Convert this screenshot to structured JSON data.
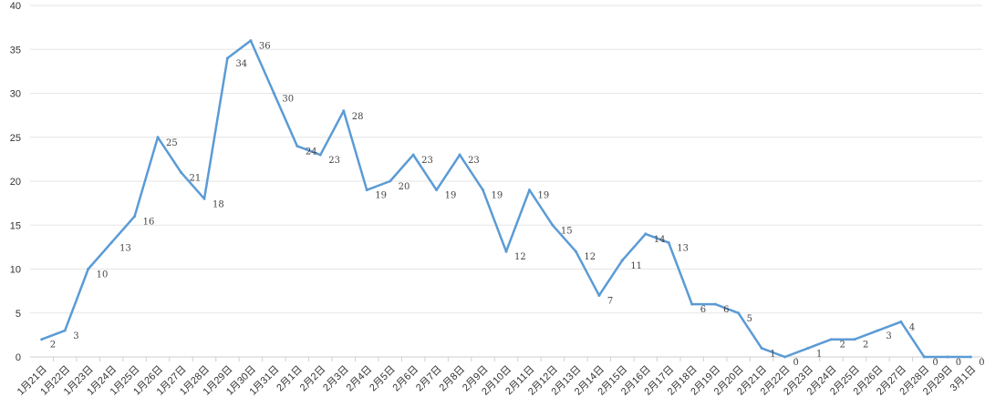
{
  "chart_data": {
    "type": "line",
    "title": "",
    "xlabel": "",
    "ylabel": "",
    "ylim": [
      0,
      40
    ],
    "yticks": [
      0,
      5,
      10,
      15,
      20,
      25,
      30,
      35,
      40
    ],
    "grid": true,
    "line_color": "#5b9bd5",
    "categories": [
      "1月21日",
      "1月22日",
      "1月23日",
      "1月24日",
      "1月25日",
      "1月26日",
      "1月27日",
      "1月28日",
      "1月29日",
      "1月30日",
      "1月31日",
      "2月1日",
      "2月2日",
      "2月3日",
      "2月4日",
      "2月5日",
      "2月6日",
      "2月7日",
      "2月8日",
      "2月9日",
      "2月10日",
      "2月11日",
      "2月12日",
      "2月13日",
      "2月14日",
      "2月15日",
      "2月16日",
      "2月17日",
      "2月18日",
      "2月19日",
      "2月20日",
      "2月21日",
      "2月22日",
      "2月23日",
      "2月24日",
      "2月25日",
      "2月26日",
      "2月27日",
      "2月28日",
      "2月29日",
      "3月1日"
    ],
    "values": [
      2,
      3,
      10,
      13,
      16,
      25,
      21,
      18,
      34,
      36,
      30,
      24,
      23,
      28,
      19,
      20,
      23,
      19,
      23,
      19,
      12,
      19,
      15,
      12,
      7,
      11,
      14,
      13,
      6,
      6,
      5,
      1,
      0,
      1,
      2,
      2,
      3,
      4,
      0,
      0,
      0
    ]
  }
}
